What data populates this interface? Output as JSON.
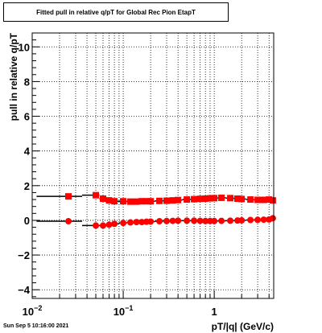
{
  "title": "Fitted pull in relative q/pT for Global Rec Pion EtapT",
  "timestamp": "Sun Sep  5 10:16:00 2021",
  "colors": {
    "frame": "#000000",
    "series_high": "#ff0000",
    "series_low": "#ff0000",
    "error_bars": "#000000"
  },
  "chart_data": {
    "type": "scatter",
    "title": "Fitted pull in relative q/pT for Global Rec Pion EtapT",
    "xlabel": "pT/|q| (GeV/c)",
    "ylabel": "pull in relative q/pT",
    "xscale": "log",
    "xlim": [
      0.01,
      4.5
    ],
    "ylim": [
      -4.5,
      10.8
    ],
    "x_ticks": [
      {
        "v": 0.01,
        "base": "10",
        "exp": "−2"
      },
      {
        "v": 0.1,
        "base": "10",
        "exp": "−1"
      },
      {
        "v": 1,
        "base": "1",
        "exp": ""
      }
    ],
    "y_ticks": [
      -4,
      -2,
      0,
      2,
      4,
      6,
      8,
      10
    ],
    "grid": true,
    "series": [
      {
        "marker": "square",
        "x": [
          0.025,
          0.05,
          0.06,
          0.07,
          0.08,
          0.1,
          0.12,
          0.14,
          0.16,
          0.18,
          0.2,
          0.25,
          0.3,
          0.35,
          0.4,
          0.5,
          0.6,
          0.7,
          0.8,
          0.9,
          1.0,
          1.2,
          1.5,
          1.8,
          2.0,
          2.5,
          3.0,
          3.5,
          4.0,
          4.4
        ],
        "y": [
          1.38,
          1.45,
          1.25,
          1.15,
          1.1,
          1.1,
          1.08,
          1.08,
          1.1,
          1.1,
          1.1,
          1.12,
          1.13,
          1.15,
          1.17,
          1.2,
          1.22,
          1.24,
          1.25,
          1.27,
          1.28,
          1.3,
          1.28,
          1.25,
          1.23,
          1.2,
          1.18,
          1.18,
          1.2,
          1.15
        ]
      },
      {
        "marker": "circle",
        "x": [
          0.025,
          0.05,
          0.06,
          0.07,
          0.08,
          0.1,
          0.12,
          0.14,
          0.16,
          0.18,
          0.2,
          0.25,
          0.3,
          0.35,
          0.4,
          0.5,
          0.6,
          0.7,
          0.8,
          0.9,
          1.0,
          1.2,
          1.5,
          1.8,
          2.0,
          2.5,
          3.0,
          3.5,
          4.0,
          4.4
        ],
        "y": [
          -0.05,
          -0.3,
          -0.3,
          -0.25,
          -0.2,
          -0.15,
          -0.12,
          -0.1,
          -0.1,
          -0.08,
          -0.07,
          -0.05,
          -0.04,
          -0.03,
          -0.02,
          -0.02,
          -0.02,
          -0.03,
          -0.04,
          -0.04,
          -0.04,
          -0.03,
          -0.02,
          -0.01,
          0.0,
          0.02,
          0.03,
          0.04,
          0.05,
          0.12
        ]
      }
    ]
  }
}
